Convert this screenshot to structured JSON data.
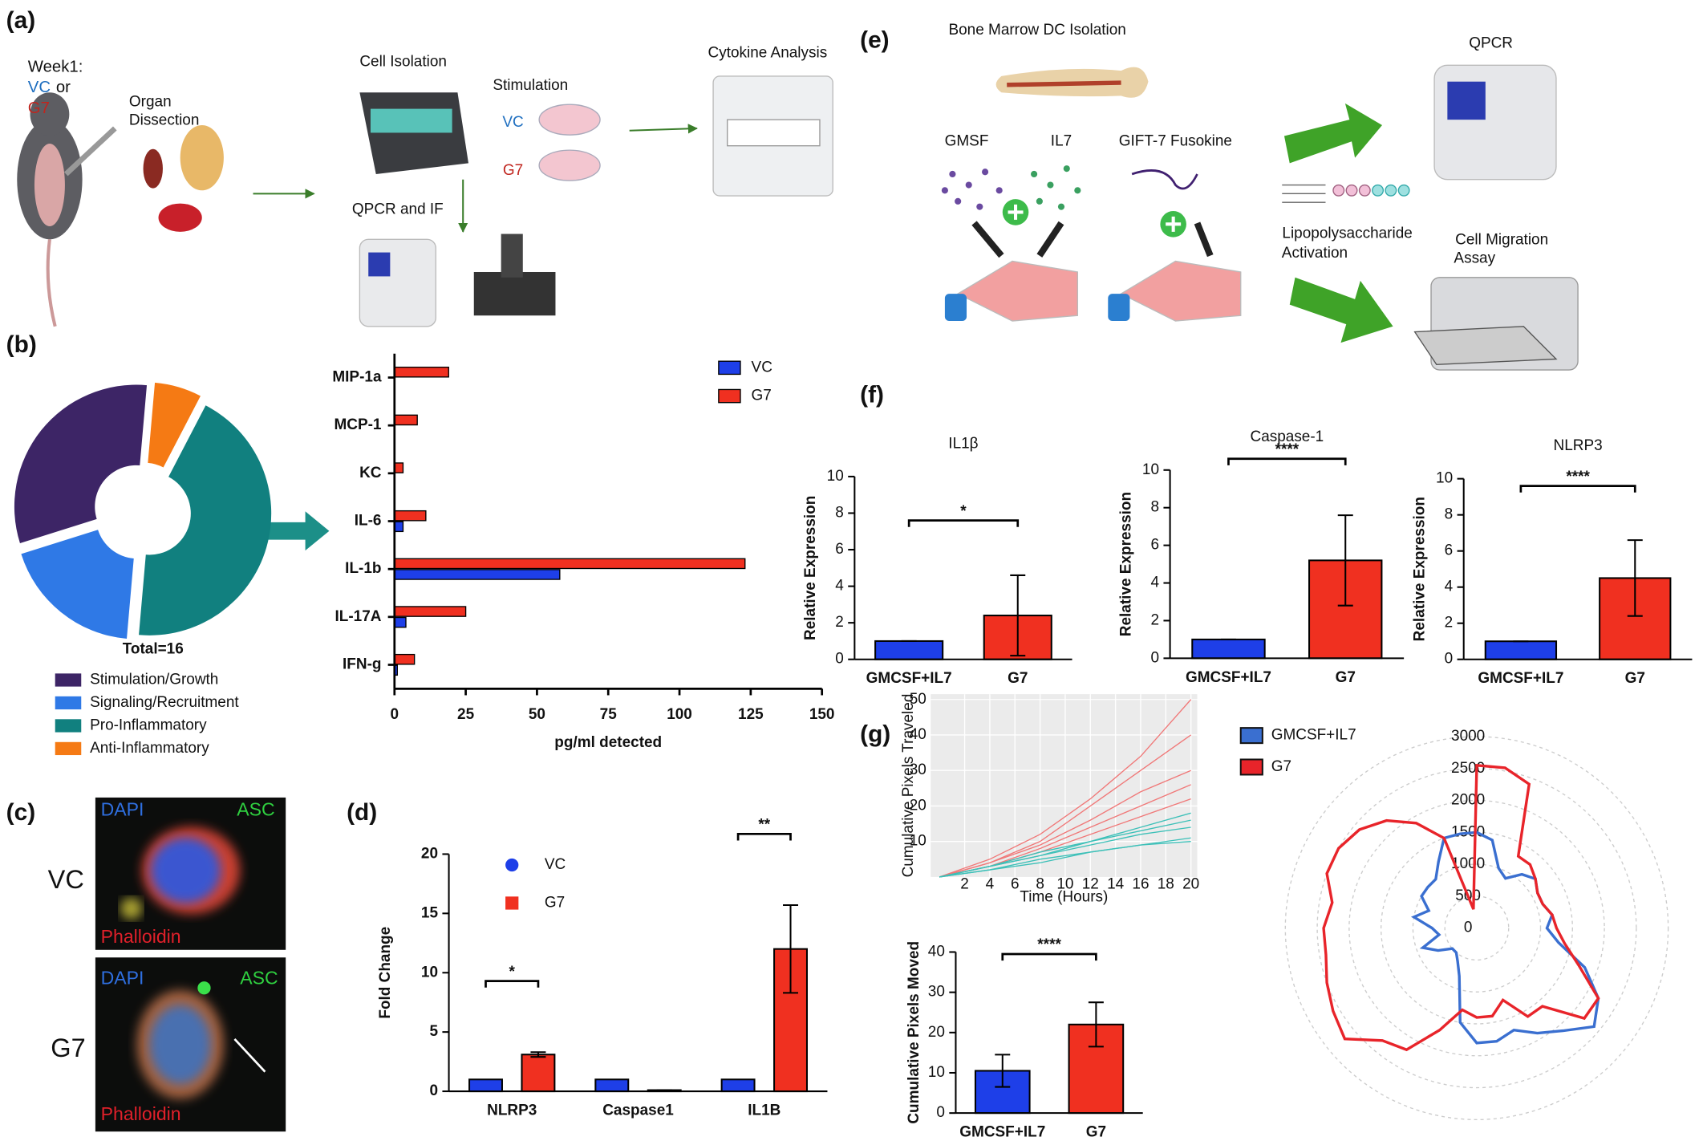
{
  "figure": {
    "panel_labels": [
      "(a)",
      "(b)",
      "(c)",
      "(d)",
      "(e)",
      "(f)",
      "(g)"
    ],
    "a": {
      "week": "Week1:",
      "vc": "VC",
      "or": "or",
      "g7": "G7",
      "organ": "Organ",
      "dissection": "Dissection",
      "cell_isolation": "Cell Isolation",
      "stimulation": "Stimulation",
      "stim_vc": "VC",
      "stim_g7": "G7",
      "cytokine": "Cytokine Analysis",
      "qpcr_if": "QPCR and IF"
    },
    "c": {
      "dapi": "DAPI",
      "asc": "ASC",
      "phalloidin": "Phalloidin",
      "rows": [
        "VC",
        "G7"
      ]
    },
    "e": {
      "bone": "Bone Marrow DC Isolation",
      "gmsf": "GMSF",
      "il7": "IL7",
      "gift": "GIFT-7 Fusokine",
      "qpcr": "QPCR",
      "lps": [
        "Lipopolysaccharide",
        "Activation"
      ],
      "migration": [
        "Cell Migration",
        "Assay"
      ]
    }
  },
  "chart_data": [
    {
      "type": "donut",
      "title": "Total=16",
      "categories": [
        "Stimulation/Growth",
        "Signaling/Recruitment",
        "Pro-Inflammatory",
        "Anti-Inflammatory"
      ],
      "values": [
        5,
        3,
        7,
        1
      ],
      "colors": [
        "#3d2566",
        "#2f79e6",
        "#11807f",
        "#f57a14"
      ]
    },
    {
      "type": "hbar",
      "xlabel": "pg/ml detected",
      "categories": [
        "MIP-1a",
        "MCP-1",
        "KC",
        "IL-6",
        "IL-1b",
        "IL-17A",
        "IFN-g"
      ],
      "series": [
        {
          "name": "VC",
          "color": "#1e3fe8",
          "values": [
            0,
            0,
            0,
            3,
            58,
            4,
            1
          ]
        },
        {
          "name": "G7",
          "color": "#f03020",
          "values": [
            19,
            8,
            3,
            11,
            123,
            25,
            7
          ]
        }
      ],
      "xlim": [
        0,
        150
      ],
      "xticks": [
        0,
        25,
        50,
        75,
        100,
        125,
        150
      ]
    },
    {
      "type": "bar",
      "ylabel": "Fold Change",
      "categories": [
        "NLRP3",
        "Caspase1",
        "IL1B"
      ],
      "series": [
        {
          "name": "VC",
          "color": "#1e3fe8",
          "marker": "circle",
          "values": [
            1,
            1,
            1
          ]
        },
        {
          "name": "G7",
          "color": "#f03020",
          "marker": "square",
          "values": [
            3.1,
            0.1,
            12
          ],
          "errors": [
            0.2,
            0,
            3.7
          ]
        }
      ],
      "significance": [
        "*",
        null,
        "**"
      ],
      "ylim": [
        0,
        20
      ],
      "yticks": [
        0,
        5,
        10,
        15,
        20
      ]
    },
    {
      "type": "bar",
      "title": "IL1β",
      "ylabel": "Relative Expression",
      "categories": [
        "GMCSF+IL7",
        "G7"
      ],
      "values": [
        1,
        2.4
      ],
      "errors": [
        0,
        2.2
      ],
      "colors": [
        "#1e3fe8",
        "#f03020"
      ],
      "significance": "*",
      "ylim": [
        0,
        10
      ],
      "yticks": [
        0,
        2,
        4,
        6,
        8,
        10
      ]
    },
    {
      "type": "bar",
      "title": "Caspase-1",
      "ylabel": "Relative Expression",
      "categories": [
        "GMCSF+IL7",
        "G7"
      ],
      "values": [
        1,
        5.2
      ],
      "errors": [
        0,
        2.4
      ],
      "colors": [
        "#1e3fe8",
        "#f03020"
      ],
      "significance": "****",
      "ylim": [
        0,
        10
      ],
      "yticks": [
        0,
        2,
        4,
        6,
        8,
        10
      ]
    },
    {
      "type": "bar",
      "title": "NLRP3",
      "ylabel": "Relative Expression",
      "categories": [
        "GMCSF+IL7",
        "G7"
      ],
      "values": [
        1,
        4.5
      ],
      "errors": [
        0,
        2.1
      ],
      "colors": [
        "#1e3fe8",
        "#f03020"
      ],
      "significance": "****",
      "ylim": [
        0,
        10
      ],
      "yticks": [
        0,
        2,
        4,
        6,
        8,
        10
      ]
    },
    {
      "type": "line",
      "xlabel": "Time (Hours)",
      "ylabel": "Cumulative Pixels Traveled",
      "x": [
        0,
        4,
        8,
        12,
        16,
        20
      ],
      "series": [
        {
          "color": "#f07878",
          "values": [
            0,
            4,
            9,
            16,
            24,
            30
          ]
        },
        {
          "color": "#f07878",
          "values": [
            0,
            4,
            10,
            20,
            30,
            40
          ]
        },
        {
          "color": "#f07878",
          "values": [
            0,
            3,
            8,
            14,
            20,
            26
          ]
        },
        {
          "color": "#f07878",
          "values": [
            0,
            5,
            12,
            22,
            34,
            50
          ]
        },
        {
          "color": "#f07878",
          "values": [
            0,
            3,
            7,
            12,
            17,
            22
          ]
        },
        {
          "color": "#3cc0b8",
          "values": [
            0,
            3,
            6,
            9,
            12,
            14
          ]
        },
        {
          "color": "#3cc0b8",
          "values": [
            0,
            2,
            4,
            7,
            9,
            11
          ]
        },
        {
          "color": "#3cc0b8",
          "values": [
            0,
            3,
            7,
            10,
            13,
            16
          ]
        },
        {
          "color": "#3cc0b8",
          "values": [
            0,
            2,
            5,
            7,
            9,
            10
          ]
        },
        {
          "color": "#3cc0b8",
          "values": [
            0,
            3,
            6,
            10,
            14,
            18
          ]
        }
      ],
      "xlim": [
        -0.7,
        20.5
      ],
      "xticks": [
        2,
        4,
        6,
        8,
        10,
        12,
        14,
        16,
        18,
        20
      ],
      "ylim": [
        0,
        51.5
      ],
      "yticks": [
        10,
        20,
        30,
        40,
        50
      ],
      "grid": true
    },
    {
      "type": "bar",
      "ylabel": "Cumulative Pixels Moved",
      "categories": [
        "GMCSF+IL7",
        "G7"
      ],
      "values": [
        10.5,
        22
      ],
      "errors": [
        4,
        5.5
      ],
      "colors": [
        "#1e3fe8",
        "#f03020"
      ],
      "significance": "****",
      "ylim": [
        0,
        40
      ],
      "yticks": [
        0,
        10,
        20,
        30,
        40
      ]
    },
    {
      "type": "polar",
      "theta": [
        0,
        10,
        20,
        30,
        40,
        50,
        60,
        70,
        80,
        90,
        100,
        110,
        120,
        130,
        140,
        150,
        160,
        170,
        180,
        190,
        200,
        210,
        220,
        230,
        240,
        250,
        260,
        270,
        280,
        290,
        300,
        310,
        320,
        330,
        340,
        350
      ],
      "series": [
        {
          "name": "GMCSF+IL7",
          "color": "#3a6fd0",
          "values": [
            1500,
            1400,
            1000,
            900,
            1100,
            1200,
            1100,
            1100,
            1200,
            1100,
            1300,
            1800,
            2200,
            2400,
            2100,
            1900,
            1700,
            1800,
            1800,
            1500,
            800,
            600,
            500,
            500,
            700,
            900,
            600,
            700,
            1000,
            800,
            1000,
            1000,
            1000,
            1200,
            1500,
            1500
          ]
        },
        {
          "name": "G7",
          "color": "#e8242a",
          "values": [
            2550,
            2550,
            2400,
            1300,
            1300,
            1200,
            1100,
            1100,
            1200,
            1250,
            1400,
            1700,
            2200,
            2200,
            1600,
            1600,
            1200,
            1400,
            1400,
            1300,
            1700,
            2200,
            2300,
            2700,
            2600,
            2500,
            2400,
            2400,
            2300,
            2500,
            2500,
            2400,
            2200,
            1900,
            1500,
            300
          ]
        }
      ],
      "rlim": [
        0,
        3000
      ],
      "rticks": [
        0,
        500,
        1000,
        1500,
        2000,
        2500,
        3000
      ]
    }
  ]
}
